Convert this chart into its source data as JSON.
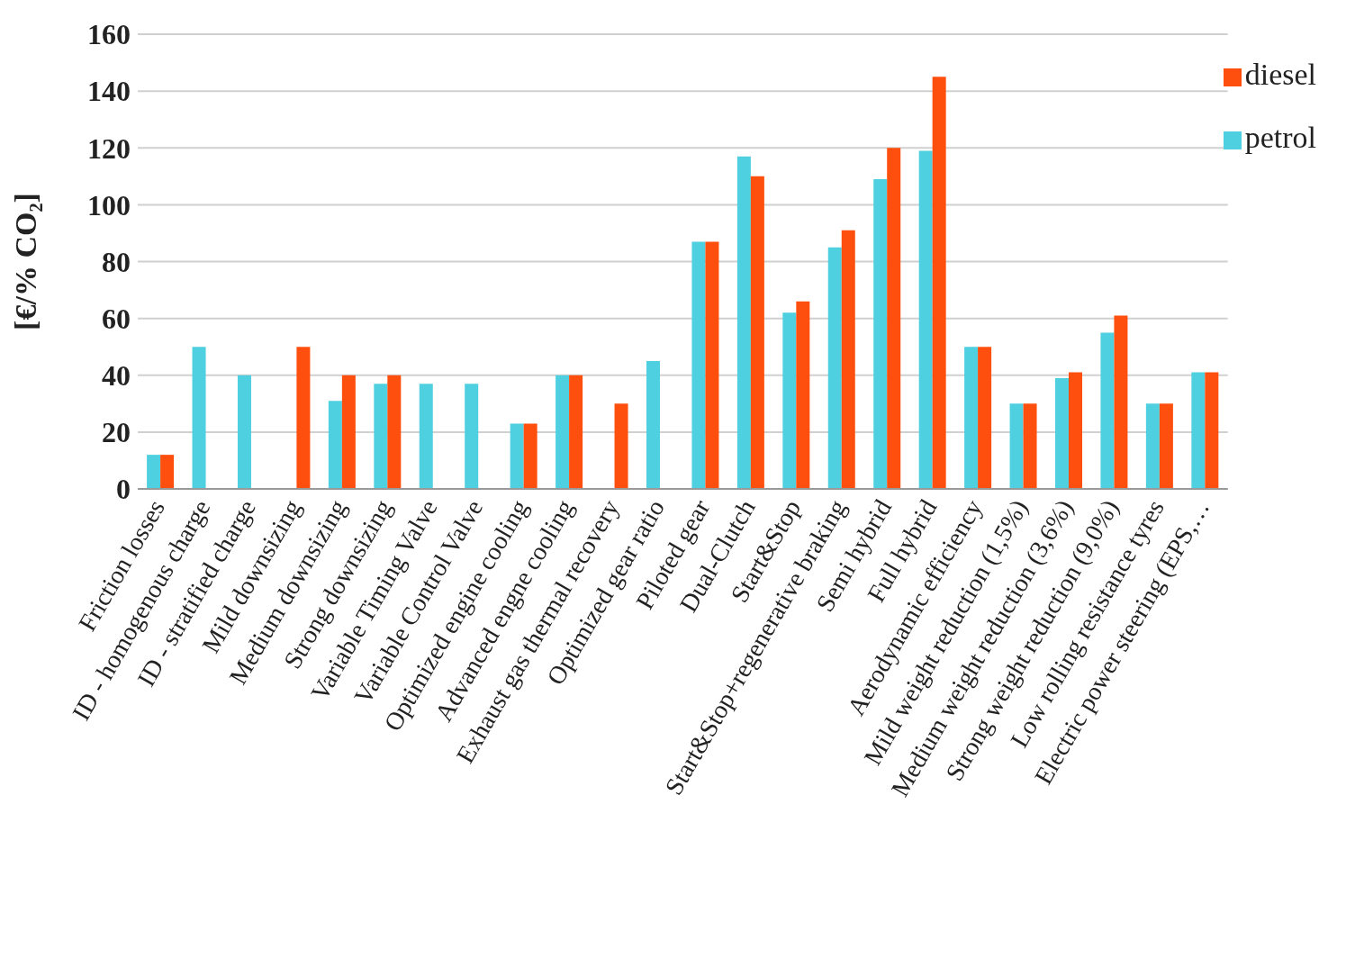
{
  "chart_data": {
    "type": "bar",
    "ylabel": "[€/% CO₂]",
    "categories": [
      "Friction losses",
      "ID - homogenous charge",
      "ID - stratified charge",
      "Mild downsizing",
      "Medium downsizing",
      "Strong downsizing",
      "Variable Timing Valve",
      "Variable Control Valve",
      "Optimized engine cooling",
      "Advanced engne cooling",
      "Exhaust gas thermal recovery",
      "Optimized gear ratio",
      "Piloted gear",
      "Dual-Clutch",
      "Start&Stop",
      "Start&Stop+regenerative braking",
      "Semi hybrid",
      "Full hybrid",
      "Aerodynamic efficiency",
      "Mild weight reduction (1,5%)",
      "Medium weight reduction (3,6%)",
      "Strong weight reduction (9,0%)",
      "Low rolling resistance tyres",
      "Electric power steering (EPS,…"
    ],
    "series": [
      {
        "name": "petrol",
        "color": "#4fd0e0",
        "values": [
          12,
          50,
          40,
          null,
          31,
          37,
          37,
          37,
          23,
          40,
          null,
          45,
          87,
          117,
          62,
          85,
          109,
          119,
          50,
          30,
          39,
          55,
          30,
          41
        ]
      },
      {
        "name": "diesel",
        "color": "#ff4f0f",
        "values": [
          12,
          null,
          null,
          50,
          40,
          40,
          null,
          null,
          23,
          40,
          30,
          null,
          87,
          110,
          66,
          91,
          120,
          145,
          50,
          30,
          41,
          61,
          30,
          41
        ]
      }
    ],
    "ylim": [
      0,
      160
    ],
    "yticks": [
      0,
      20,
      40,
      60,
      80,
      100,
      120,
      140,
      160
    ],
    "grid": "y",
    "legend": "top right"
  }
}
